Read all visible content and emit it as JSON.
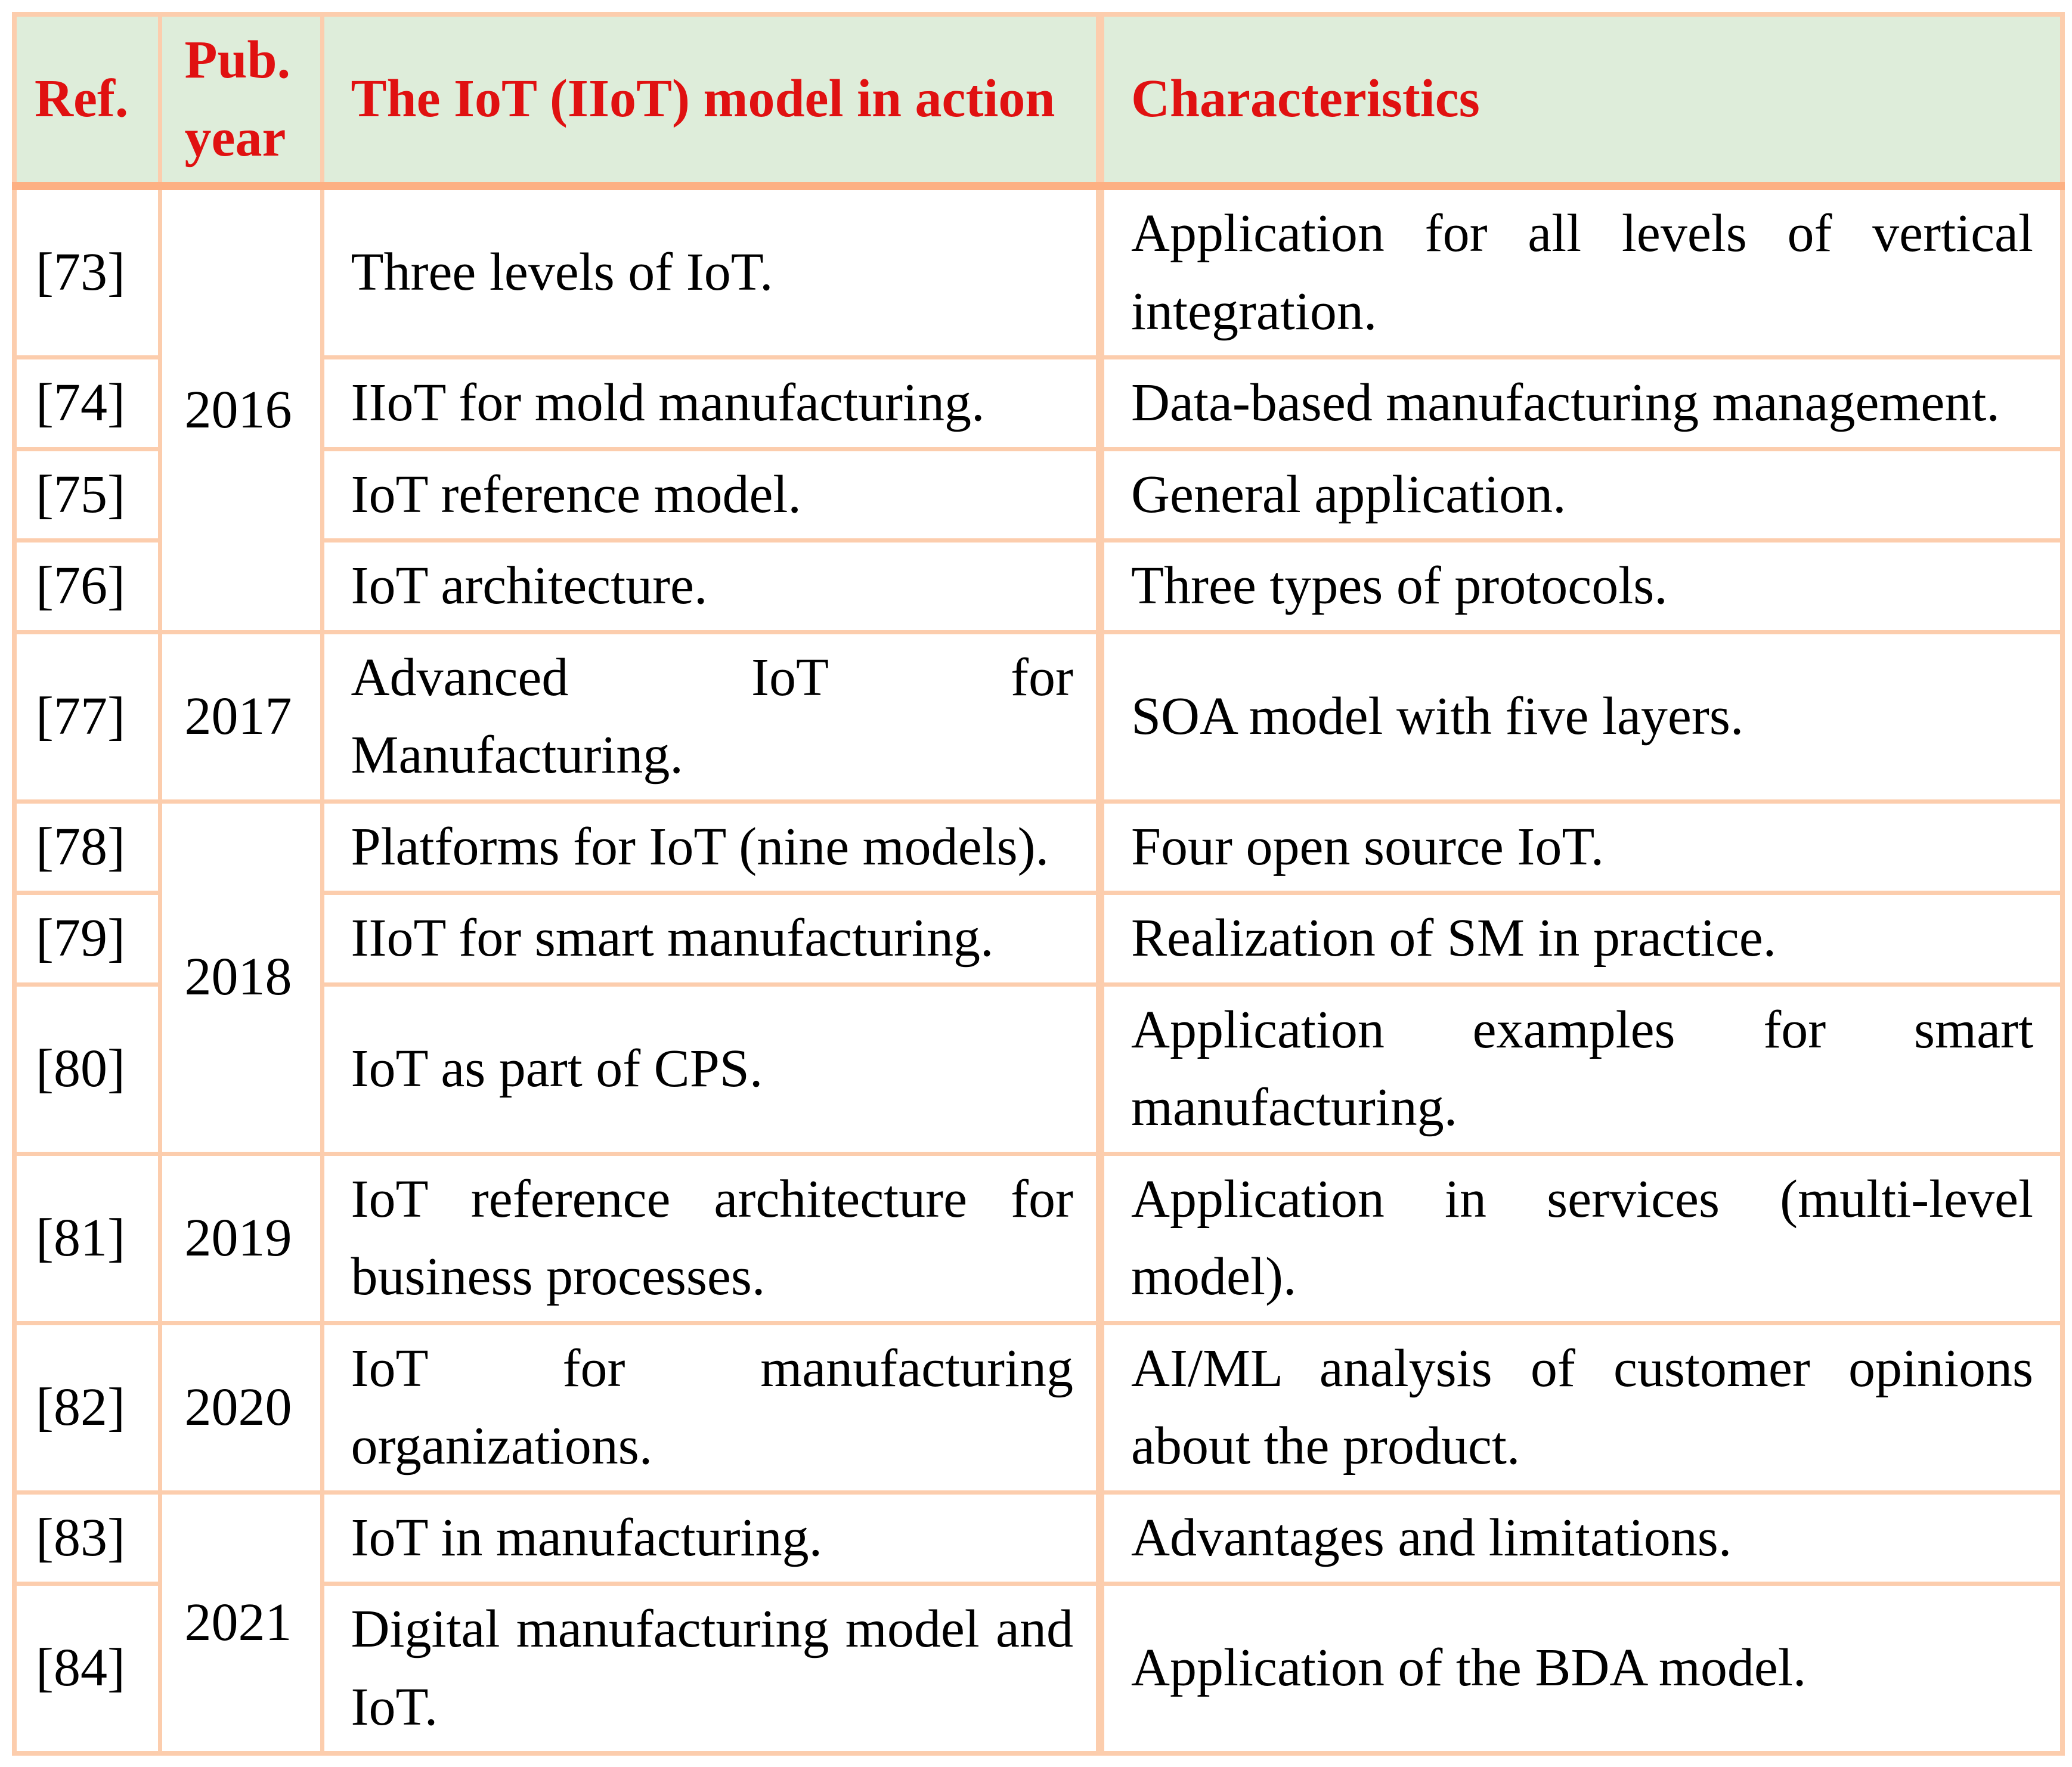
{
  "theme": {
    "page_bg": "#ffffff",
    "header_bg": "#deedda",
    "header_text": "#e01111",
    "body_text": "#000000",
    "border_color": "#fccdad",
    "divider_color": "#fdb083"
  },
  "table": {
    "headers": {
      "ref": "Ref.",
      "year": "Pub. year",
      "model": "The IoT (IIoT) model in action",
      "characteristics": "Characteristics"
    },
    "rows": [
      {
        "ref": "[73]",
        "year": "2016",
        "model": "Three levels of IoT.",
        "characteristics": "Application for all levels of vertical integration."
      },
      {
        "ref": "[74]",
        "model": "IIoT for mold manufacturing.",
        "characteristics": "Data-based manufacturing management."
      },
      {
        "ref": "[75]",
        "model": "IoT reference model.",
        "characteristics": "General application."
      },
      {
        "ref": "[76]",
        "model": "IoT architecture.",
        "characteristics": "Three types of protocols."
      },
      {
        "ref": "[77]",
        "year": "2017",
        "model": "Advanced IoT for Manufacturing.",
        "characteristics": "SOA model with five layers."
      },
      {
        "ref": "[78]",
        "year": "2018",
        "model": "Platforms for IoT (nine models).",
        "characteristics": "Four open source IoT."
      },
      {
        "ref": "[79]",
        "model": "IIoT for smart manufacturing.",
        "characteristics": "Realization of SM in practice."
      },
      {
        "ref": "[80]",
        "model": "IoT as part of CPS.",
        "characteristics": "Application examples for smart manufacturing."
      },
      {
        "ref": "[81]",
        "year": "2019",
        "model": "IoT reference architecture for business processes.",
        "characteristics": "Application in services (multi-level model)."
      },
      {
        "ref": "[82]",
        "year": "2020",
        "model": "IoT for manufacturing organizations.",
        "characteristics": "AI/ML analysis of customer opinions about the product."
      },
      {
        "ref": "[83]",
        "year": "2021",
        "model": "IoT in manufacturing.",
        "characteristics": "Advantages and limitations."
      },
      {
        "ref": "[84]",
        "model": "Digital manufacturing model and IoT.",
        "characteristics": "Application of the BDA model."
      }
    ]
  }
}
